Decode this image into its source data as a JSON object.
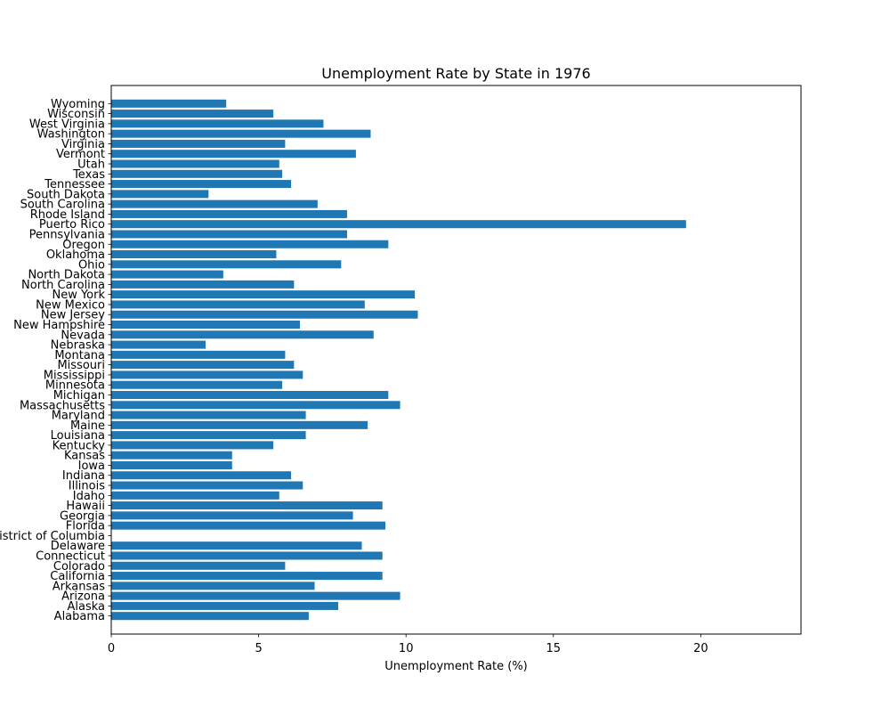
{
  "chart_data": {
    "type": "bar",
    "orientation": "horizontal",
    "title": "Unemployment Rate by State in 1976",
    "xlabel": "Unemployment Rate (%)",
    "ylabel": "",
    "xlim": [
      0,
      23.4
    ],
    "xticks": [
      0,
      5,
      10,
      15,
      20
    ],
    "grid": false,
    "bar_color": "#1f77b4",
    "categories": [
      "Alabama",
      "Alaska",
      "Arizona",
      "Arkansas",
      "California",
      "Colorado",
      "Connecticut",
      "Delaware",
      "District of Columbia",
      "Florida",
      "Georgia",
      "Hawaii",
      "Idaho",
      "Illinois",
      "Indiana",
      "Iowa",
      "Kansas",
      "Kentucky",
      "Louisiana",
      "Maine",
      "Maryland",
      "Massachusetts",
      "Michigan",
      "Minnesota",
      "Mississippi",
      "Missouri",
      "Montana",
      "Nebraska",
      "Nevada",
      "New Hampshire",
      "New Jersey",
      "New Mexico",
      "New York",
      "North Carolina",
      "North Dakota",
      "Ohio",
      "Oklahoma",
      "Oregon",
      "Pennsylvania",
      "Puerto Rico",
      "Rhode Island",
      "South Carolina",
      "South Dakota",
      "Tennessee",
      "Texas",
      "Utah",
      "Vermont",
      "Virginia",
      "Washington",
      "West Virginia",
      "Wisconsin",
      "Wyoming"
    ],
    "values": [
      6.7,
      7.7,
      9.8,
      6.9,
      9.2,
      5.9,
      9.2,
      8.5,
      0,
      9.3,
      8.2,
      9.2,
      5.7,
      6.5,
      6.1,
      4.1,
      4.1,
      5.5,
      6.6,
      8.7,
      6.6,
      9.8,
      9.4,
      5.8,
      6.5,
      6.2,
      5.9,
      3.2,
      8.9,
      6.4,
      10.4,
      8.6,
      10.3,
      6.2,
      3.8,
      7.8,
      5.6,
      9.4,
      8.0,
      19.5,
      8.0,
      7.0,
      3.3,
      6.1,
      5.8,
      5.7,
      8.3,
      5.9,
      8.8,
      7.2,
      5.5,
      3.9
    ]
  }
}
